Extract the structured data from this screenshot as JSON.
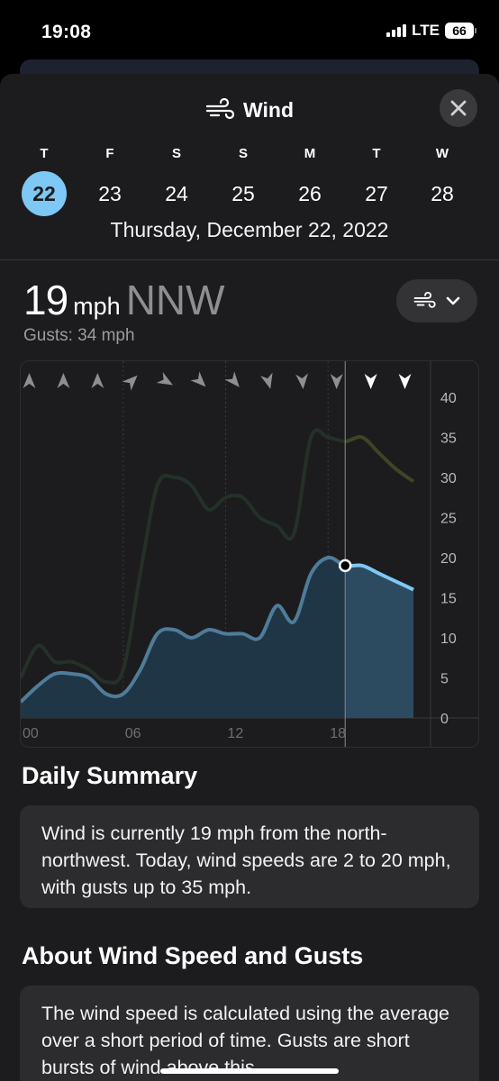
{
  "status": {
    "time": "19:08",
    "network": "LTE",
    "battery": "66"
  },
  "header": {
    "title": "Wind",
    "icon": "wind-icon"
  },
  "days": [
    {
      "letter": "T",
      "num": "22",
      "selected": true
    },
    {
      "letter": "F",
      "num": "23"
    },
    {
      "letter": "S",
      "num": "24"
    },
    {
      "letter": "S",
      "num": "25"
    },
    {
      "letter": "M",
      "num": "26"
    },
    {
      "letter": "T",
      "num": "27"
    },
    {
      "letter": "W",
      "num": "28"
    }
  ],
  "selected_date": "Thursday, December 22, 2022",
  "current": {
    "speed": "19",
    "unit": "mph",
    "direction": "NNW",
    "gusts": "Gusts: 34 mph"
  },
  "chart_data": {
    "type": "area",
    "x_ticks": [
      "00",
      "06",
      "12",
      "18"
    ],
    "y_ticks": [
      "0",
      "5",
      "10",
      "15",
      "20",
      "25",
      "30",
      "35",
      "40"
    ],
    "ylim": [
      0,
      40
    ],
    "xlim": [
      0,
      24
    ],
    "current_hour": 19,
    "series": [
      {
        "points": [
          [
            0,
            2
          ],
          [
            1,
            4
          ],
          [
            2,
            5.5
          ],
          [
            3,
            5.5
          ],
          [
            4,
            5
          ],
          [
            5,
            3
          ],
          [
            6,
            3
          ],
          [
            7,
            6
          ],
          [
            8,
            10.5
          ],
          [
            9,
            11
          ],
          [
            10,
            10
          ],
          [
            11,
            11
          ],
          [
            12,
            10.5
          ],
          [
            13,
            10.5
          ],
          [
            14,
            10
          ],
          [
            15,
            14
          ],
          [
            16,
            12
          ],
          [
            17,
            18
          ],
          [
            18,
            20
          ],
          [
            19,
            19
          ],
          [
            20,
            19
          ],
          [
            21,
            18
          ],
          [
            22,
            17
          ],
          [
            23,
            16
          ]
        ]
      },
      {
        "points": [
          [
            0,
            5
          ],
          [
            1,
            9
          ],
          [
            2,
            7
          ],
          [
            3,
            7
          ],
          [
            4,
            6
          ],
          [
            5,
            4.5
          ],
          [
            6,
            6
          ],
          [
            7,
            18
          ],
          [
            8,
            29
          ],
          [
            9,
            30
          ],
          [
            10,
            29
          ],
          [
            11,
            26
          ],
          [
            12,
            27.5
          ],
          [
            13,
            27.5
          ],
          [
            14,
            25
          ],
          [
            15,
            24
          ],
          [
            16,
            23
          ],
          [
            17,
            35
          ],
          [
            18,
            35
          ],
          [
            19,
            34.5
          ],
          [
            20,
            35
          ],
          [
            21,
            33
          ],
          [
            22,
            31
          ],
          [
            23,
            29.5
          ]
        ]
      }
    ],
    "direction_arrows": [
      {
        "hour": 0.5,
        "deg": 0
      },
      {
        "hour": 2.5,
        "deg": 0
      },
      {
        "hour": 4.5,
        "deg": 0
      },
      {
        "hour": 6.5,
        "deg": 45
      },
      {
        "hour": 8.5,
        "deg": 120
      },
      {
        "hour": 10.5,
        "deg": 135
      },
      {
        "hour": 12.5,
        "deg": 140
      },
      {
        "hour": 14.5,
        "deg": 165
      },
      {
        "hour": 16.5,
        "deg": 175
      },
      {
        "hour": 18.5,
        "deg": 180
      },
      {
        "hour": 20.5,
        "deg": 180
      },
      {
        "hour": 22.5,
        "deg": 180
      }
    ]
  },
  "summary": {
    "title": "Daily Summary",
    "text": "Wind is currently 19 mph from the north-northwest. Today, wind speeds are 2 to 20 mph, with gusts up to 35 mph."
  },
  "about": {
    "title": "About Wind Speed and Gusts",
    "text": "The wind speed is calculated using the average over a short period of time. Gusts are short bursts of wind above this"
  }
}
